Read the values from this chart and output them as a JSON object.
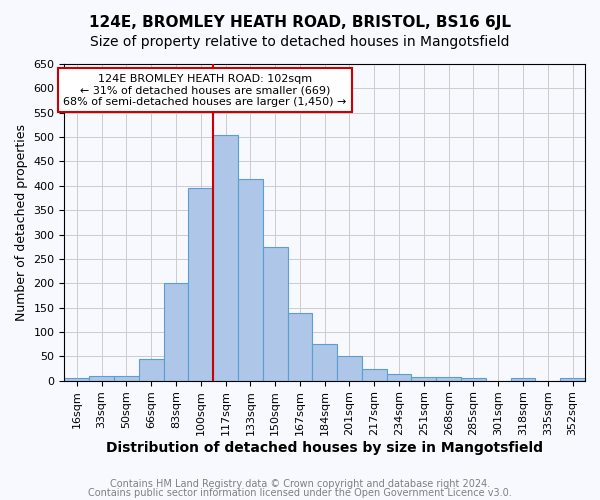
{
  "title1": "124E, BROMLEY HEATH ROAD, BRISTOL, BS16 6JL",
  "title2": "Size of property relative to detached houses in Mangotsfield",
  "xlabel": "Distribution of detached houses by size in Mangotsfield",
  "ylabel": "Number of detached properties",
  "bin_labels": [
    "16sqm",
    "33sqm",
    "50sqm",
    "66sqm",
    "83sqm",
    "100sqm",
    "117sqm",
    "133sqm",
    "150sqm",
    "167sqm",
    "184sqm",
    "201sqm",
    "217sqm",
    "234sqm",
    "251sqm",
    "268sqm",
    "285sqm",
    "301sqm",
    "318sqm",
    "335sqm",
    "352sqm"
  ],
  "bar_heights": [
    5,
    10,
    10,
    45,
    200,
    395,
    505,
    415,
    275,
    140,
    75,
    50,
    25,
    13,
    8,
    8,
    5,
    0,
    5,
    0,
    5
  ],
  "bar_color": "#aec6e8",
  "bar_edgecolor": "#5a9fd4",
  "vline_color": "#cc0000",
  "annotation_text": "124E BROMLEY HEATH ROAD: 102sqm\n← 31% of detached houses are smaller (669)\n68% of semi-detached houses are larger (1,450) →",
  "annotation_box_edgecolor": "#cc0000",
  "annotation_box_facecolor": "#ffffff",
  "ylim": [
    0,
    650
  ],
  "yticks": [
    0,
    50,
    100,
    150,
    200,
    250,
    300,
    350,
    400,
    450,
    500,
    550,
    600,
    650
  ],
  "grid_color": "#cccccc",
  "background_color": "#f8f8ff",
  "footer1": "Contains HM Land Registry data © Crown copyright and database right 2024.",
  "footer2": "Contains public sector information licensed under the Open Government Licence v3.0.",
  "title1_fontsize": 11,
  "title2_fontsize": 10,
  "xlabel_fontsize": 10,
  "ylabel_fontsize": 9,
  "tick_fontsize": 8,
  "footer_fontsize": 7,
  "annotation_fontsize": 8
}
